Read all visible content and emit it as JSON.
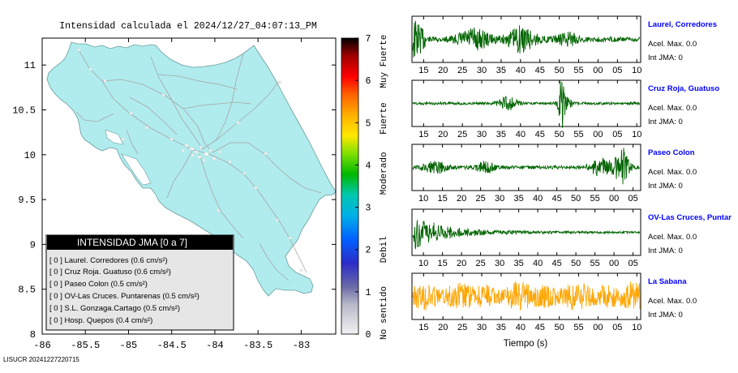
{
  "map": {
    "title": "Intensidad calculada el 2024/12/27_04:07:13_PM",
    "xticks": [
      "-86",
      "-85.5",
      "-85",
      "-84.5",
      "-84",
      "-83.5",
      "-83"
    ],
    "yticks": [
      "8",
      "8.5",
      "9",
      "9.5",
      "10",
      "10.5",
      "11"
    ],
    "xlim": [
      -86,
      -82.6
    ],
    "ylim": [
      8,
      11.3
    ]
  },
  "colorbar": {
    "ticks": [
      "0",
      "1",
      "2",
      "3",
      "4",
      "5",
      "6",
      "7"
    ],
    "labels": [
      {
        "text": "No sentido",
        "level": 0.5
      },
      {
        "text": "Debil",
        "level": 2.0
      },
      {
        "text": "Moderado",
        "level": 3.8
      },
      {
        "text": "Fuerte",
        "level": 5.1
      },
      {
        "text": "Muy Fuerte",
        "level": 6.45
      }
    ],
    "colors": [
      "#f2f2f2",
      "#9a9ab8",
      "#2c2cc8",
      "#00a0e8",
      "#00c8b8",
      "#00b800",
      "#80e000",
      "#ffe800",
      "#ffb000",
      "#ff6000",
      "#ff0000",
      "#a00000",
      "#000000"
    ]
  },
  "legend": {
    "title": "INTENSIDAD JMA [0 a 7]",
    "items": [
      "[ 0 ]  Laurel. Corredores (0.6 cm/s²)",
      "[ 0 ]  Cruz Roja. Guatuso (0.6 cm/s²)",
      "[ 0 ]  Paseo Colon (0.5 cm/s²)",
      "[ 0 ]  OV-Las Cruces. Puntarenas (0.5 cm/s²)",
      "[ 0 ]  S.L. Gonzaga.Cartago (0.5 cm/s²)",
      "[ 0 ]  Hosp. Quepos (0.4 cm/s²)"
    ]
  },
  "footer": "LISUCR 20241227220715",
  "xlabel": "Tiempo (s)",
  "colors": {
    "land": "#b0eced",
    "wave_green": "#006400",
    "wave_orange": "#ffa500",
    "station_name": "#0000ff"
  },
  "chart_data": {
    "type": "line",
    "series": [
      {
        "name": "Laurel, Corredores",
        "acel_max": "Acel. Max. 0.0",
        "int_jma": "Int JMA: 0",
        "xticks": [
          "15",
          "20",
          "25",
          "30",
          "35",
          "40",
          "45",
          "50",
          "55",
          "00",
          "05",
          "10"
        ],
        "tick_start": 15,
        "x_start": 12,
        "x_end": 71,
        "color": "green",
        "pattern": "laurel"
      },
      {
        "name": "Cruz Roja, Guatuso",
        "acel_max": "Acel. Max. 0.0",
        "int_jma": "Int JMA: 0",
        "xticks": [
          "15",
          "20",
          "25",
          "30",
          "35",
          "40",
          "45",
          "50",
          "55",
          "00",
          "05",
          "10"
        ],
        "tick_start": 15,
        "x_start": 12,
        "x_end": 71,
        "color": "green",
        "pattern": "guatuso"
      },
      {
        "name": "Paseo Colon",
        "acel_max": "Acel. Max. 0.0",
        "int_jma": "Int JMA: 0",
        "xticks": [
          "10",
          "15",
          "20",
          "25",
          "30",
          "35",
          "40",
          "45",
          "50",
          "55",
          "00",
          "05"
        ],
        "tick_start": 10,
        "x_start": 7,
        "x_end": 67,
        "color": "green",
        "pattern": "paseo"
      },
      {
        "name": "OV-Las Cruces, Puntar",
        "acel_max": "Acel. Max. 0.0",
        "int_jma": "Int JMA: 0",
        "xticks": [
          "10",
          "15",
          "20",
          "25",
          "30",
          "35",
          "40",
          "45",
          "50",
          "55",
          "00",
          "05"
        ],
        "tick_start": 10,
        "x_start": 7,
        "x_end": 67,
        "color": "green",
        "pattern": "cruces"
      },
      {
        "name": "La Sabana",
        "acel_max": "Acel. Max. 0.0",
        "int_jma": "Int JMA: 0",
        "xticks": [
          "15",
          "20",
          "25",
          "30",
          "35",
          "40",
          "45",
          "50",
          "55",
          "00",
          "05",
          "10"
        ],
        "tick_start": 15,
        "x_start": 12,
        "x_end": 71,
        "color": "orange",
        "pattern": "sabana"
      }
    ]
  }
}
